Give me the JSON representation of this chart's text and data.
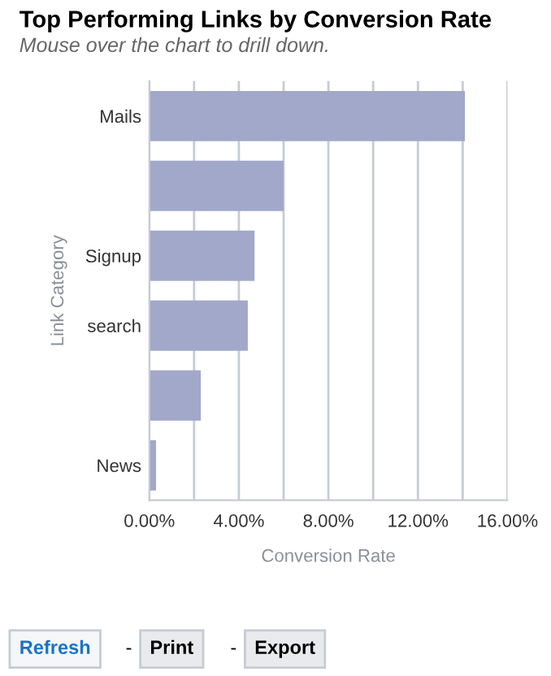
{
  "chart_data": {
    "type": "bar",
    "orientation": "horizontal",
    "title": "Top Performing Links by Conversion Rate",
    "subtitle": "Mouse over the chart to drill down.",
    "xlabel": "Conversion Rate",
    "ylabel": "Link Category",
    "categories": [
      "Mails",
      null,
      "Signup",
      "search",
      null,
      "News"
    ],
    "values": [
      14.1,
      6.0,
      4.7,
      4.4,
      2.3,
      0.3
    ],
    "color": "#a2a8ca",
    "xlim": [
      0,
      16
    ],
    "xticks": [
      {
        "value": 0,
        "label": "0.00%"
      },
      {
        "value": 2,
        "label": null
      },
      {
        "value": 4,
        "label": "4.00%"
      },
      {
        "value": 6,
        "label": null
      },
      {
        "value": 8,
        "label": "8.00%"
      },
      {
        "value": 10,
        "label": null
      },
      {
        "value": 12,
        "label": "12.00%"
      },
      {
        "value": 14,
        "label": null
      },
      {
        "value": 16,
        "label": "16.00%"
      }
    ],
    "grid": "x",
    "annotations": [
      "Refresh",
      "-",
      "Print",
      "-",
      "Export"
    ]
  }
}
